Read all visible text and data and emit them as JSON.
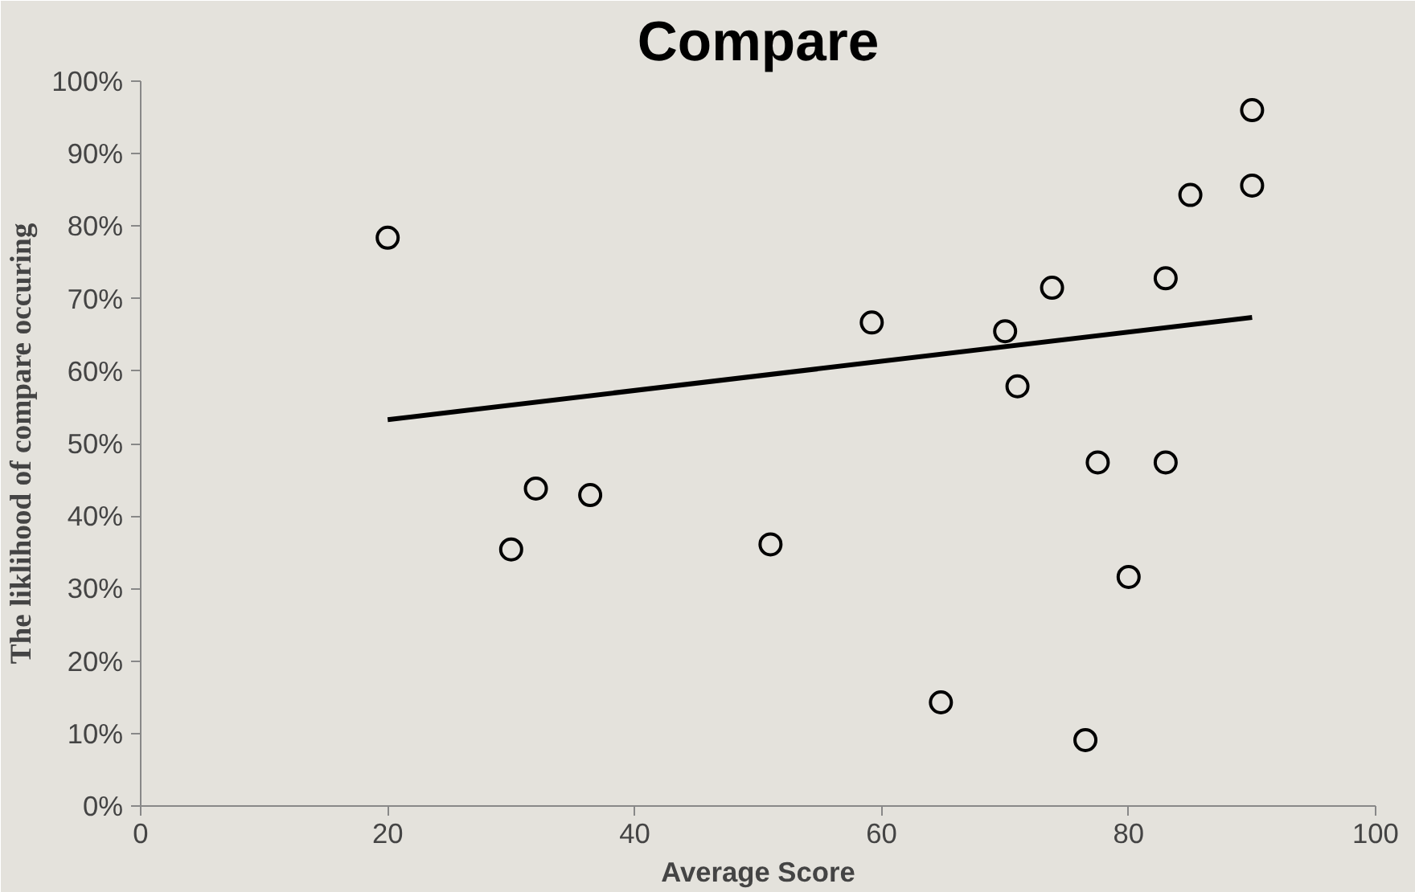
{
  "chart_data": {
    "type": "scatter",
    "title": "Compare",
    "xlabel": "Average Score",
    "ylabel": "The liklihood of compare occuring",
    "xlim": [
      0,
      100
    ],
    "xticks": [
      0,
      20,
      40,
      60,
      80,
      100
    ],
    "ylim": [
      0,
      100
    ],
    "yticks": [
      {
        "value": 0,
        "label": "0%"
      },
      {
        "value": 10,
        "label": "10%"
      },
      {
        "value": 20,
        "label": "20%"
      },
      {
        "value": 30,
        "label": "30%"
      },
      {
        "value": 40,
        "label": "40%"
      },
      {
        "value": 50,
        "label": "50%"
      },
      {
        "value": 60,
        "label": "60%"
      },
      {
        "value": 70,
        "label": "70%"
      },
      {
        "value": 80,
        "label": "80%"
      },
      {
        "value": 90,
        "label": "90%"
      },
      {
        "value": 100,
        "label": "100%"
      }
    ],
    "grid": false,
    "series": [
      {
        "marker": "circle",
        "color": "#000000",
        "x": [
          20,
          30,
          32,
          36.4,
          51,
          59.2,
          64.8,
          70,
          71,
          73.8,
          76.5,
          77.5,
          80,
          83,
          83,
          85,
          90,
          90
        ],
        "values": [
          78.4,
          35.4,
          43.8,
          42.9,
          36.1,
          66.7,
          14.3,
          65.5,
          57.9,
          71.5,
          9.1,
          47.4,
          31.6,
          47.4,
          72.8,
          84.3,
          85.6,
          96.0
        ]
      },
      {
        "type": "line",
        "marker": "none",
        "color": "#000000",
        "x": [
          20,
          90
        ],
        "values": [
          53.3,
          67.4
        ]
      }
    ]
  }
}
